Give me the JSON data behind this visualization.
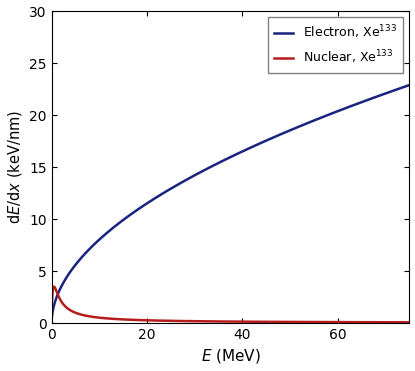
{
  "title": "",
  "xlabel": "$E$ (MeV)",
  "ylabel": "d$E$/d$x$ (keV/nm)",
  "xlim": [
    0,
    75
  ],
  "ylim": [
    0,
    30
  ],
  "xticks": [
    0,
    20,
    40,
    60
  ],
  "yticks": [
    0,
    5,
    10,
    15,
    20,
    25,
    30
  ],
  "electron_color": "#1a237e",
  "nuclear_color": "#b71c1c",
  "figsize": [
    4.15,
    3.71
  ],
  "dpi": 100,
  "Se_A": 2.54,
  "Se_alpha": 0.5,
  "Se_B": 0.004,
  "Sn_A": 5.8,
  "Sn_alpha": 0.45,
  "Sn_B": 1.8,
  "Sn_beta": 1.0
}
